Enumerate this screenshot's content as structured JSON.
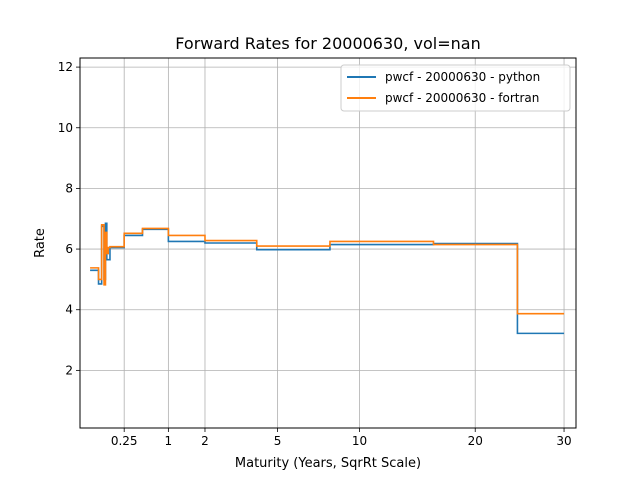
{
  "chart_data": {
    "type": "line",
    "title": "Forward Rates for 20000630, vol=nan",
    "xlabel": "Maturity (Years, SqrRt Scale)",
    "ylabel": "Rate",
    "x_scale": "sqrt",
    "xlim": [
      0.0,
      31.5
    ],
    "ylim": [
      0.1,
      12.3
    ],
    "x_ticks": [
      0.25,
      1,
      2,
      5,
      10,
      20,
      30
    ],
    "x_tick_labels": [
      "0.25",
      "1",
      "2",
      "5",
      "10",
      "20",
      "30"
    ],
    "y_ticks": [
      2,
      4,
      6,
      8,
      10,
      12
    ],
    "y_tick_labels": [
      "2",
      "4",
      "6",
      "8",
      "10",
      "12"
    ],
    "grid": true,
    "legend_position": "upper right",
    "series": [
      {
        "name": "pwcf - 20000630 - python",
        "color": "#1f77b4",
        "x": [
          0.013,
          0.044,
          0.044,
          0.06,
          0.06,
          0.074,
          0.074,
          0.083,
          0.083,
          0.092,
          0.092,
          0.102,
          0.102,
          0.115,
          0.115,
          0.125,
          0.125,
          0.14,
          0.14,
          0.16,
          0.16,
          0.25,
          0.25,
          0.5,
          0.5,
          1.0,
          1.0,
          2.0,
          2.0,
          4.0,
          4.0,
          8.0,
          8.0,
          16.0,
          16.0,
          24.5,
          24.5,
          30.0
        ],
        "y": [
          5.3,
          5.3,
          4.85,
          4.85,
          6.75,
          6.75,
          5.0,
          5.0,
          6.85,
          6.85,
          5.65,
          5.65,
          5.65,
          5.65,
          6.05,
          6.05,
          6.05,
          6.05,
          6.05,
          6.05,
          6.05,
          6.05,
          6.45,
          6.45,
          6.65,
          6.65,
          6.25,
          6.25,
          6.2,
          6.2,
          5.98,
          5.98,
          6.15,
          6.15,
          6.18,
          6.18,
          3.22,
          3.22
        ]
      },
      {
        "name": "pwcf - 20000630 - fortran",
        "color": "#ff7f0e",
        "x": [
          0.013,
          0.044,
          0.044,
          0.06,
          0.06,
          0.074,
          0.074,
          0.083,
          0.083,
          0.092,
          0.092,
          0.102,
          0.102,
          0.115,
          0.115,
          0.25,
          0.25,
          0.5,
          0.5,
          1.0,
          1.0,
          2.0,
          2.0,
          4.0,
          4.0,
          8.0,
          8.0,
          16.0,
          16.0,
          24.5,
          24.5,
          30.0
        ],
        "y": [
          5.38,
          5.38,
          5.0,
          5.0,
          6.8,
          6.8,
          4.82,
          4.82,
          6.55,
          6.55,
          5.85,
          5.85,
          6.05,
          6.05,
          6.08,
          6.08,
          6.52,
          6.52,
          6.68,
          6.68,
          6.45,
          6.45,
          6.28,
          6.28,
          6.1,
          6.1,
          6.25,
          6.25,
          6.15,
          6.15,
          3.87,
          3.87
        ]
      }
    ]
  }
}
